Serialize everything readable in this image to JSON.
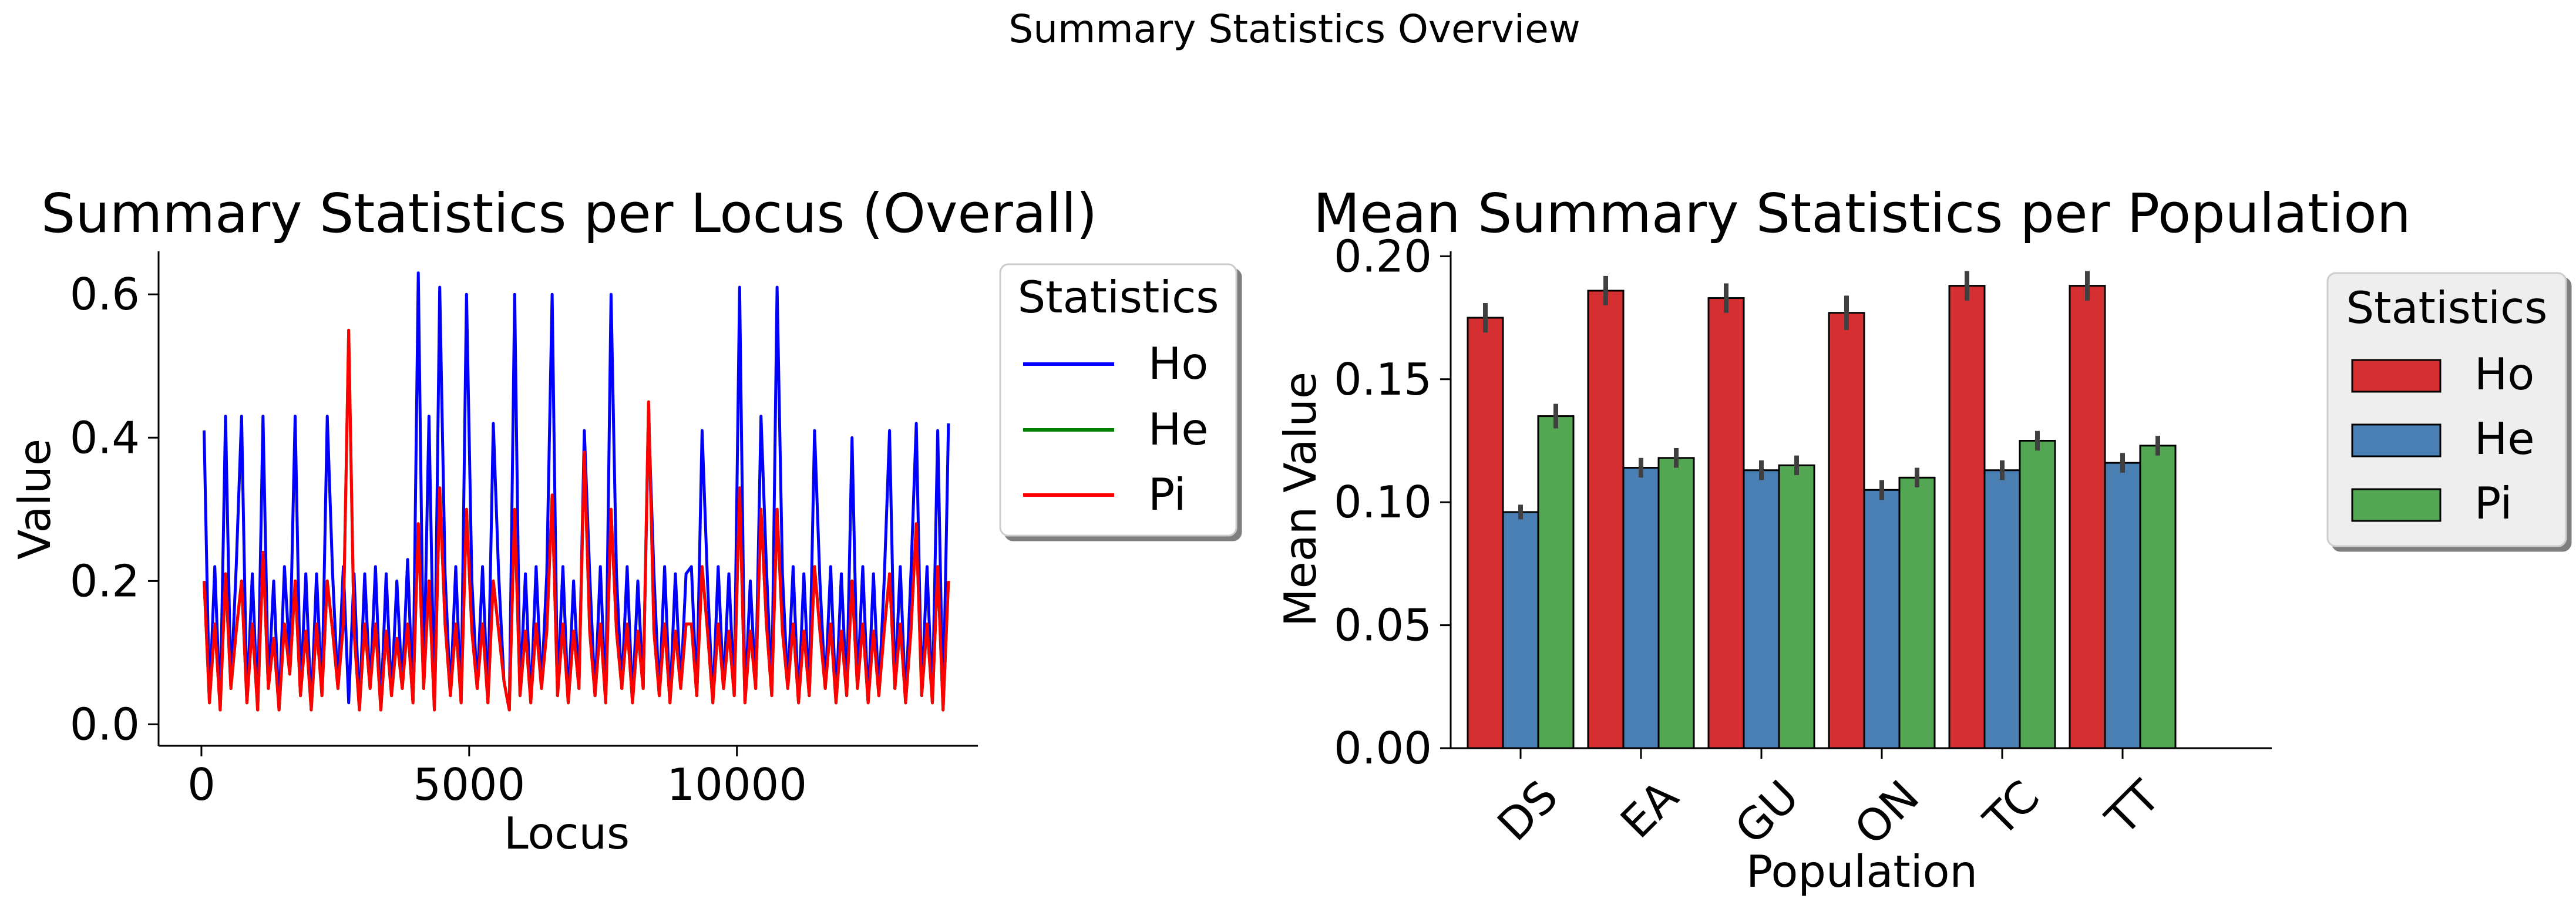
{
  "suptitle": "Summary Statistics Overview",
  "chart_data": [
    {
      "type": "line",
      "title": "Summary Statistics per Locus (Overall)",
      "xlabel": "Locus",
      "ylabel": "Value",
      "xlim": [
        -800,
        14500
      ],
      "ylim": [
        -0.03,
        0.66
      ],
      "x_ticks": [
        0,
        5000,
        10000
      ],
      "x_tick_labels": [
        "0",
        "5000",
        "10000"
      ],
      "y_ticks": [
        0.0,
        0.2,
        0.4,
        0.6
      ],
      "y_tick_labels": [
        "0.0",
        "0.2",
        "0.4",
        "0.6"
      ],
      "legend": {
        "title": "Statistics",
        "position": "outside-right-top",
        "labels": [
          "Ho",
          "He",
          "Pi"
        ]
      },
      "x": [
        50,
        150,
        250,
        350,
        450,
        550,
        650,
        750,
        850,
        950,
        1050,
        1150,
        1250,
        1350,
        1450,
        1550,
        1650,
        1750,
        1850,
        1950,
        2050,
        2150,
        2250,
        2350,
        2450,
        2550,
        2650,
        2750,
        2850,
        2950,
        3050,
        3150,
        3250,
        3350,
        3450,
        3550,
        3650,
        3750,
        3850,
        3950,
        4050,
        4150,
        4250,
        4350,
        4450,
        4550,
        4650,
        4750,
        4850,
        4950,
        5050,
        5150,
        5250,
        5350,
        5450,
        5550,
        5650,
        5750,
        5850,
        5950,
        6050,
        6150,
        6250,
        6350,
        6450,
        6550,
        6650,
        6750,
        6850,
        6950,
        7050,
        7150,
        7250,
        7350,
        7450,
        7550,
        7650,
        7750,
        7850,
        7950,
        8050,
        8150,
        8250,
        8350,
        8450,
        8550,
        8650,
        8750,
        8850,
        8950,
        9050,
        9150,
        9250,
        9350,
        9450,
        9550,
        9650,
        9750,
        9850,
        9950,
        10050,
        10150,
        10250,
        10350,
        10450,
        10550,
        10650,
        10750,
        10850,
        10950,
        11050,
        11150,
        11250,
        11350,
        11450,
        11550,
        11650,
        11750,
        11850,
        11950,
        12050,
        12150,
        12250,
        12350,
        12450,
        12550,
        12650,
        12750,
        12850,
        12950,
        13050,
        13150,
        13250,
        13350,
        13450,
        13550,
        13650,
        13750,
        13850,
        13950
      ],
      "series": [
        {
          "name": "Ho",
          "color": "#0000ff",
          "values": [
            0.41,
            0.03,
            0.22,
            0.02,
            0.43,
            0.05,
            0.22,
            0.43,
            0.03,
            0.21,
            0.02,
            0.43,
            0.05,
            0.2,
            0.02,
            0.22,
            0.09,
            0.43,
            0.04,
            0.21,
            0.02,
            0.21,
            0.04,
            0.43,
            0.21,
            0.05,
            0.22,
            0.03,
            0.21,
            0.02,
            0.21,
            0.05,
            0.22,
            0.02,
            0.21,
            0.04,
            0.2,
            0.05,
            0.23,
            0.03,
            0.63,
            0.05,
            0.43,
            0.02,
            0.61,
            0.21,
            0.04,
            0.22,
            0.03,
            0.6,
            0.2,
            0.05,
            0.22,
            0.03,
            0.42,
            0.21,
            0.06,
            0.02,
            0.6,
            0.04,
            0.21,
            0.03,
            0.22,
            0.05,
            0.21,
            0.6,
            0.04,
            0.22,
            0.03,
            0.2,
            0.05,
            0.41,
            0.21,
            0.04,
            0.22,
            0.03,
            0.6,
            0.21,
            0.05,
            0.22,
            0.03,
            0.2,
            0.05,
            0.43,
            0.21,
            0.04,
            0.22,
            0.03,
            0.21,
            0.05,
            0.21,
            0.22,
            0.04,
            0.41,
            0.2,
            0.03,
            0.22,
            0.05,
            0.21,
            0.04,
            0.61,
            0.03,
            0.2,
            0.05,
            0.43,
            0.22,
            0.04,
            0.61,
            0.21,
            0.05,
            0.22,
            0.03,
            0.21,
            0.04,
            0.41,
            0.2,
            0.05,
            0.22,
            0.03,
            0.21,
            0.04,
            0.4,
            0.05,
            0.22,
            0.03,
            0.21,
            0.04,
            0.2,
            0.41,
            0.05,
            0.22,
            0.03,
            0.21,
            0.42,
            0.04,
            0.22,
            0.03,
            0.41,
            0.02,
            0.42
          ]
        },
        {
          "name": "He",
          "color": "#008000",
          "values": [
            0.2,
            0.03,
            0.14,
            0.02,
            0.21,
            0.05,
            0.13,
            0.2,
            0.03,
            0.14,
            0.02,
            0.24,
            0.05,
            0.12,
            0.02,
            0.14,
            0.07,
            0.2,
            0.04,
            0.13,
            0.02,
            0.14,
            0.04,
            0.2,
            0.13,
            0.05,
            0.14,
            0.55,
            0.13,
            0.02,
            0.14,
            0.05,
            0.14,
            0.02,
            0.13,
            0.04,
            0.12,
            0.05,
            0.14,
            0.03,
            0.28,
            0.05,
            0.2,
            0.02,
            0.33,
            0.14,
            0.04,
            0.14,
            0.03,
            0.3,
            0.13,
            0.05,
            0.14,
            0.03,
            0.2,
            0.13,
            0.06,
            0.02,
            0.3,
            0.04,
            0.13,
            0.03,
            0.14,
            0.05,
            0.13,
            0.32,
            0.04,
            0.14,
            0.03,
            0.13,
            0.05,
            0.38,
            0.13,
            0.04,
            0.14,
            0.03,
            0.3,
            0.13,
            0.05,
            0.14,
            0.03,
            0.13,
            0.05,
            0.45,
            0.13,
            0.04,
            0.14,
            0.03,
            0.13,
            0.05,
            0.14,
            0.14,
            0.04,
            0.22,
            0.13,
            0.03,
            0.14,
            0.05,
            0.13,
            0.04,
            0.33,
            0.03,
            0.13,
            0.05,
            0.3,
            0.14,
            0.04,
            0.3,
            0.13,
            0.05,
            0.14,
            0.03,
            0.13,
            0.04,
            0.22,
            0.13,
            0.05,
            0.14,
            0.03,
            0.13,
            0.04,
            0.2,
            0.05,
            0.14,
            0.03,
            0.13,
            0.04,
            0.13,
            0.21,
            0.05,
            0.14,
            0.03,
            0.13,
            0.28,
            0.04,
            0.14,
            0.03,
            0.22,
            0.02,
            0.2
          ]
        },
        {
          "name": "Pi",
          "color": "#ff0000",
          "values": [
            0.2,
            0.03,
            0.14,
            0.02,
            0.21,
            0.05,
            0.13,
            0.2,
            0.03,
            0.14,
            0.02,
            0.24,
            0.05,
            0.12,
            0.02,
            0.14,
            0.07,
            0.2,
            0.04,
            0.13,
            0.02,
            0.14,
            0.04,
            0.2,
            0.13,
            0.05,
            0.14,
            0.55,
            0.13,
            0.02,
            0.14,
            0.05,
            0.14,
            0.02,
            0.13,
            0.04,
            0.12,
            0.05,
            0.14,
            0.03,
            0.28,
            0.05,
            0.2,
            0.02,
            0.33,
            0.14,
            0.04,
            0.14,
            0.03,
            0.3,
            0.13,
            0.05,
            0.14,
            0.03,
            0.2,
            0.13,
            0.06,
            0.02,
            0.3,
            0.04,
            0.13,
            0.03,
            0.14,
            0.05,
            0.13,
            0.32,
            0.04,
            0.14,
            0.03,
            0.13,
            0.05,
            0.38,
            0.13,
            0.04,
            0.14,
            0.03,
            0.3,
            0.13,
            0.05,
            0.14,
            0.03,
            0.13,
            0.05,
            0.45,
            0.13,
            0.04,
            0.14,
            0.03,
            0.13,
            0.05,
            0.14,
            0.14,
            0.04,
            0.22,
            0.13,
            0.03,
            0.14,
            0.05,
            0.13,
            0.04,
            0.33,
            0.03,
            0.13,
            0.05,
            0.3,
            0.14,
            0.04,
            0.3,
            0.13,
            0.05,
            0.14,
            0.03,
            0.13,
            0.04,
            0.22,
            0.13,
            0.05,
            0.14,
            0.03,
            0.13,
            0.04,
            0.2,
            0.05,
            0.14,
            0.03,
            0.13,
            0.04,
            0.13,
            0.21,
            0.05,
            0.14,
            0.03,
            0.13,
            0.28,
            0.04,
            0.14,
            0.03,
            0.22,
            0.02,
            0.2
          ]
        }
      ]
    },
    {
      "type": "bar",
      "title": "Mean Summary Statistics per Population",
      "xlabel": "Population",
      "ylabel": "Mean Value",
      "ylim": [
        0,
        0.202
      ],
      "y_ticks": [
        0.0,
        0.05,
        0.1,
        0.15,
        0.2
      ],
      "y_tick_labels": [
        "0.00",
        "0.05",
        "0.10",
        "0.15",
        "0.20"
      ],
      "categories": [
        "DS",
        "EA",
        "GU",
        "ON",
        "TC",
        "TT"
      ],
      "legend": {
        "title": "Statistics",
        "position": "outside-right-top",
        "labels": [
          "Ho",
          "He",
          "Pi"
        ]
      },
      "series": [
        {
          "name": "Ho",
          "color": "#d62f32",
          "values": [
            0.175,
            0.186,
            0.183,
            0.177,
            0.188,
            0.188
          ],
          "err": [
            0.006,
            0.006,
            0.006,
            0.007,
            0.006,
            0.006
          ]
        },
        {
          "name": "He",
          "color": "#4a7fb3",
          "values": [
            0.096,
            0.114,
            0.113,
            0.105,
            0.113,
            0.116
          ],
          "err": [
            0.003,
            0.004,
            0.004,
            0.004,
            0.004,
            0.004
          ]
        },
        {
          "name": "Pi",
          "color": "#54a752",
          "values": [
            0.135,
            0.118,
            0.115,
            0.11,
            0.125,
            0.123
          ],
          "err": [
            0.005,
            0.004,
            0.004,
            0.004,
            0.004,
            0.004
          ]
        }
      ]
    }
  ]
}
